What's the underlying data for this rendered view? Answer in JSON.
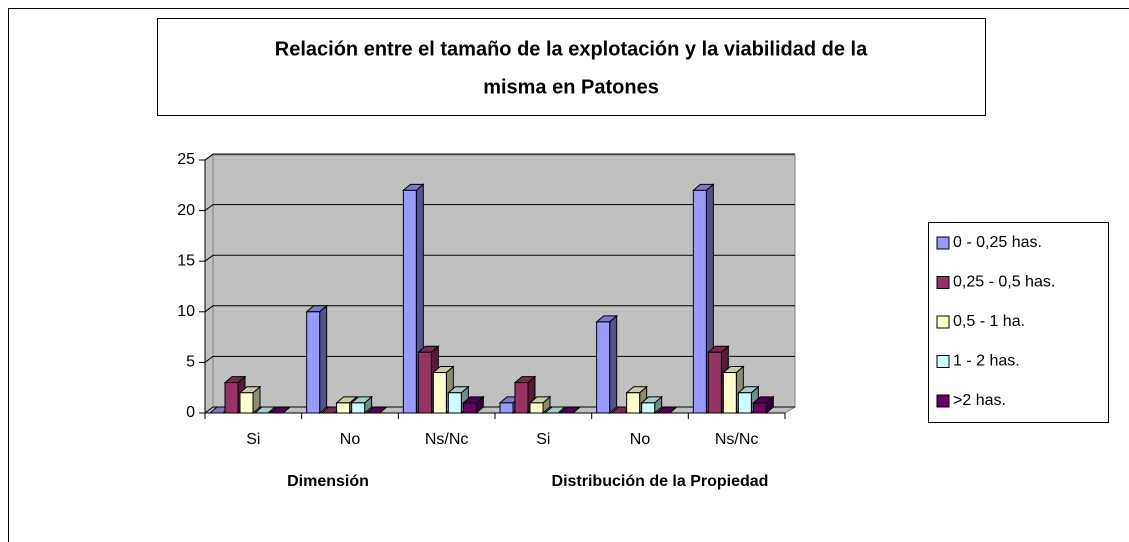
{
  "chart_data": {
    "type": "bar3d",
    "title": [
      "Relación entre el tamaño de la explotación y la viabilidad de la",
      "misma en Patones"
    ],
    "categories": [
      "Si",
      "No",
      "Ns/Nc",
      "Si",
      "No",
      "Ns/Nc"
    ],
    "group_labels": [
      "Dimensión",
      "Distribución de la Propiedad"
    ],
    "series": [
      {
        "name": "0 - 0,25 has.",
        "color": "#9999ff",
        "values": [
          0,
          10,
          22,
          1,
          9,
          22
        ]
      },
      {
        "name": "0,25 - 0,5 has.",
        "color": "#993366",
        "values": [
          3,
          0,
          6,
          3,
          0,
          6
        ]
      },
      {
        "name": "0,5 - 1 ha.",
        "color": "#ffffcc",
        "values": [
          2,
          1,
          4,
          1,
          2,
          4
        ]
      },
      {
        "name": "1 - 2 has.",
        "color": "#ccffff",
        "values": [
          0,
          1,
          2,
          0,
          1,
          2
        ]
      },
      {
        "name": ">2 has.",
        "color": "#660066",
        "values": [
          0,
          0,
          1,
          0,
          0,
          1
        ]
      }
    ],
    "ylim": [
      0,
      25
    ],
    "yticks": [
      0,
      5,
      10,
      15,
      20,
      25
    ],
    "grid": true,
    "legend": "right"
  }
}
